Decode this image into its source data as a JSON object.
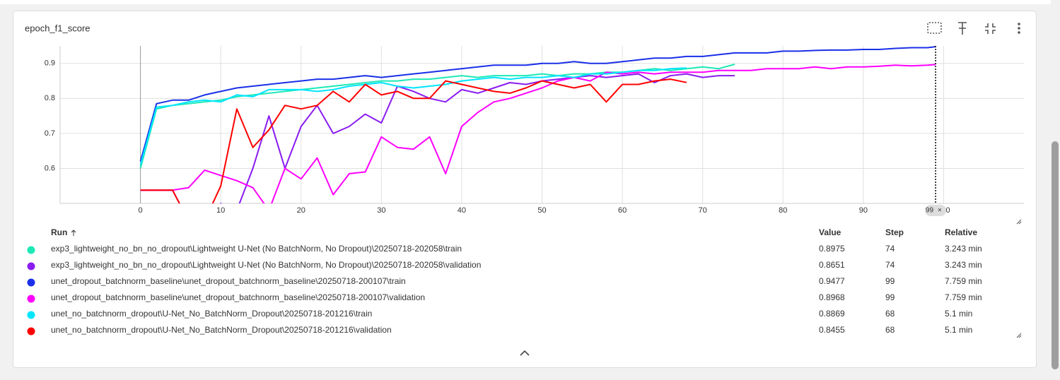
{
  "chart_data": {
    "type": "line",
    "title": "epoch_f1_score",
    "x": [
      0,
      2,
      4,
      6,
      8,
      10,
      12,
      14,
      16,
      18,
      20,
      22,
      24,
      26,
      28,
      30,
      32,
      34,
      36,
      38,
      40,
      42,
      44,
      46,
      48,
      50,
      52,
      54,
      56,
      58,
      60,
      62,
      64,
      66,
      68,
      70,
      72,
      74,
      76,
      78,
      80,
      82,
      84,
      86,
      88,
      90,
      92,
      94,
      96,
      98,
      99
    ],
    "series": [
      {
        "name": "exp3_lightweight_no_bn_no_dropout\\Lightweight U-Net (No BatchNorm, No Dropout)\\20250718-202058\\train",
        "color": "#1de9b6",
        "values": [
          0.6,
          0.77,
          0.78,
          0.785,
          0.79,
          0.795,
          0.805,
          0.81,
          0.815,
          0.82,
          0.825,
          0.83,
          0.835,
          0.84,
          0.845,
          0.85,
          0.85,
          0.855,
          0.855,
          0.86,
          0.865,
          0.86,
          0.865,
          0.865,
          0.865,
          0.87,
          0.865,
          0.87,
          0.87,
          0.875,
          0.875,
          0.88,
          0.885,
          0.88,
          0.885,
          0.89,
          0.885,
          0.8975,
          null,
          null,
          null,
          null,
          null,
          null,
          null,
          null,
          null,
          null,
          null,
          null,
          null
        ]
      },
      {
        "name": "exp3_lightweight_no_bn_no_dropout\\Lightweight U-Net (No BatchNorm, No Dropout)\\20250718-202058\\validation",
        "color": "#8a1cf0",
        "values": [
          0.538,
          0.538,
          0.538,
          0.45,
          0.45,
          0.5,
          0.48,
          0.6,
          0.75,
          0.6,
          0.72,
          0.78,
          0.7,
          0.72,
          0.755,
          0.73,
          0.835,
          0.82,
          0.8,
          0.79,
          0.825,
          0.815,
          0.83,
          0.845,
          0.84,
          0.85,
          0.855,
          0.86,
          0.865,
          0.86,
          0.865,
          0.87,
          0.845,
          0.865,
          0.87,
          0.86,
          0.865,
          0.8651,
          null,
          null,
          null,
          null,
          null,
          null,
          null,
          null,
          null,
          null,
          null,
          null,
          null
        ]
      },
      {
        "name": "unet_dropout_batchnorm_baseline\\unet_dropout_batchnorm_baseline\\20250718-200107\\train",
        "color": "#1a30e8",
        "values": [
          0.62,
          0.785,
          0.795,
          0.795,
          0.81,
          0.82,
          0.83,
          0.835,
          0.84,
          0.845,
          0.85,
          0.855,
          0.855,
          0.86,
          0.865,
          0.86,
          0.865,
          0.87,
          0.875,
          0.88,
          0.885,
          0.89,
          0.895,
          0.895,
          0.895,
          0.9,
          0.9,
          0.905,
          0.9,
          0.9,
          0.905,
          0.91,
          0.915,
          0.915,
          0.92,
          0.92,
          0.925,
          0.93,
          0.93,
          0.93,
          0.935,
          0.935,
          0.937,
          0.938,
          0.938,
          0.94,
          0.94,
          0.943,
          0.945,
          0.945,
          0.9477
        ]
      },
      {
        "name": "unet_dropout_batchnorm_baseline\\unet_dropout_batchnorm_baseline\\20250718-200107\\validation",
        "color": "#ff00ff",
        "values": [
          0.538,
          0.538,
          0.538,
          0.545,
          0.595,
          0.58,
          0.565,
          0.545,
          0.48,
          0.6,
          0.57,
          0.63,
          0.525,
          0.585,
          0.59,
          0.69,
          0.66,
          0.655,
          0.69,
          0.585,
          0.72,
          0.76,
          0.79,
          0.8,
          0.815,
          0.83,
          0.85,
          0.86,
          0.85,
          0.875,
          0.87,
          0.875,
          0.87,
          0.875,
          0.875,
          0.875,
          0.88,
          0.88,
          0.88,
          0.885,
          0.885,
          0.885,
          0.89,
          0.885,
          0.89,
          0.89,
          0.892,
          0.895,
          0.893,
          0.895,
          0.8968
        ]
      },
      {
        "name": "unet_no_batchnorm_dropout\\U-Net_No_BatchNorm_Dropout\\20250718-201216\\train",
        "color": "#00e5ff",
        "values": [
          0.61,
          0.775,
          0.78,
          0.79,
          0.795,
          0.79,
          0.81,
          0.805,
          0.825,
          0.825,
          0.825,
          0.82,
          0.825,
          0.835,
          0.84,
          0.845,
          0.835,
          0.83,
          0.835,
          0.84,
          0.85,
          0.855,
          0.86,
          0.855,
          0.86,
          0.86,
          0.865,
          0.86,
          0.87,
          0.87,
          0.875,
          0.88,
          0.88,
          0.885,
          0.8869,
          null,
          null,
          null,
          null,
          null,
          null,
          null,
          null,
          null,
          null,
          null,
          null,
          null,
          null,
          null,
          null
        ]
      },
      {
        "name": "unet_no_batchnorm_dropout\\U-Net_No_BatchNorm_Dropout\\20250718-201216\\validation",
        "color": "#ff0000",
        "values": [
          0.538,
          0.538,
          0.538,
          0.45,
          0.45,
          0.55,
          0.77,
          0.66,
          0.71,
          0.78,
          0.77,
          0.78,
          0.82,
          0.79,
          0.84,
          0.81,
          0.82,
          0.8,
          0.8,
          0.85,
          0.84,
          0.83,
          0.82,
          0.815,
          0.83,
          0.85,
          0.84,
          0.83,
          0.84,
          0.79,
          0.84,
          0.84,
          0.85,
          0.855,
          0.8455,
          null,
          null,
          null,
          null,
          null,
          null,
          null,
          null,
          null,
          null,
          null,
          null,
          null,
          null,
          null,
          null
        ]
      }
    ],
    "xlim": [
      -10,
      110
    ],
    "ylim": [
      0.5,
      0.95
    ],
    "xticks": [
      0,
      10,
      20,
      30,
      40,
      50,
      60,
      70,
      80,
      90,
      100
    ],
    "yticks": [
      0.6,
      0.7,
      0.8,
      0.9
    ],
    "grid": true,
    "cursor_x": 99
  },
  "runs_table": {
    "headers": [
      "Run",
      "Value",
      "Step",
      "Relative"
    ],
    "rows": [
      {
        "value": 0.8975,
        "step": 74,
        "relative": "3.243 min"
      },
      {
        "value": 0.8651,
        "step": 74,
        "relative": "3.243 min"
      },
      {
        "value": 0.9477,
        "step": 99,
        "relative": "7.759 min"
      },
      {
        "value": 0.8968,
        "step": 99,
        "relative": "7.759 min"
      },
      {
        "value": 0.8869,
        "step": 68,
        "relative": "5.1 min"
      },
      {
        "value": 0.8455,
        "step": 68,
        "relative": "5.1 min"
      }
    ]
  }
}
